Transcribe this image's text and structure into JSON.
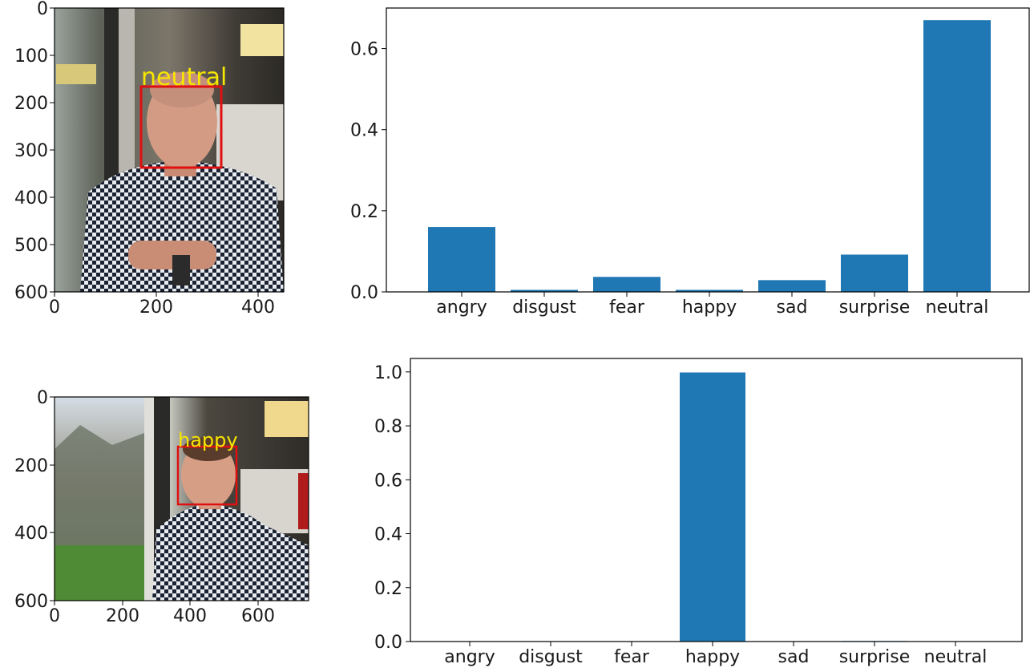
{
  "figure": {
    "top_image": {
      "overlay_label": "neutral",
      "xticks": [
        "0",
        "200",
        "400"
      ],
      "yticks": [
        "0",
        "100",
        "200",
        "300",
        "400",
        "500",
        "600"
      ],
      "box_color": "#e01010",
      "label_color": "#f7e600"
    },
    "bottom_image": {
      "overlay_label": "happy",
      "xticks": [
        "0",
        "200",
        "400",
        "600"
      ],
      "yticks": [
        "0",
        "200",
        "400",
        "600"
      ],
      "box_color": "#e01010",
      "label_color": "#f7e600"
    }
  },
  "chart_data": [
    {
      "type": "bar",
      "categories": [
        "angry",
        "disgust",
        "fear",
        "happy",
        "sad",
        "surprise",
        "neutral"
      ],
      "values": [
        0.16,
        0.005,
        0.037,
        0.005,
        0.029,
        0.092,
        0.67
      ],
      "yticks": [
        "0.0",
        "0.2",
        "0.4",
        "0.6"
      ],
      "ylim": [
        0,
        0.7
      ],
      "grid": false,
      "bar_color": "#1f77b4"
    },
    {
      "type": "bar",
      "categories": [
        "angry",
        "disgust",
        "fear",
        "happy",
        "sad",
        "surprise",
        "neutral"
      ],
      "values": [
        0.0,
        0.0,
        0.0,
        0.998,
        0.0,
        0.002,
        0.0
      ],
      "yticks": [
        "0.0",
        "0.2",
        "0.4",
        "0.6",
        "0.8",
        "1.0"
      ],
      "ylim": [
        0,
        1.05
      ],
      "grid": false,
      "bar_color": "#1f77b4"
    }
  ]
}
